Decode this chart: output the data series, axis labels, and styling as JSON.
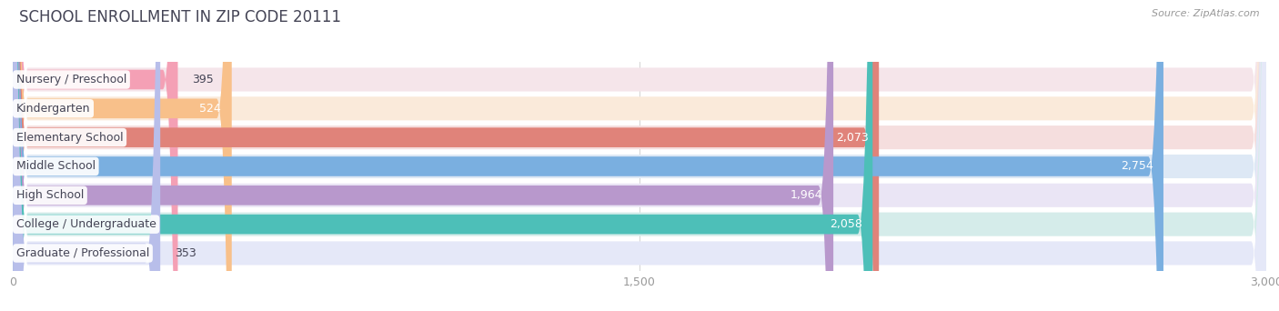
{
  "title": "SCHOOL ENROLLMENT IN ZIP CODE 20111",
  "source": "Source: ZipAtlas.com",
  "categories": [
    "Nursery / Preschool",
    "Kindergarten",
    "Elementary School",
    "Middle School",
    "High School",
    "College / Undergraduate",
    "Graduate / Professional"
  ],
  "values": [
    395,
    524,
    2073,
    2754,
    1964,
    2058,
    353
  ],
  "bar_colors": [
    "#f4a0b5",
    "#f8c08a",
    "#e0837a",
    "#7aafe0",
    "#b898cc",
    "#4dbfb8",
    "#b8beea"
  ],
  "bar_bg_colors": [
    "#f5e5ea",
    "#faeada",
    "#f5dede",
    "#dde8f5",
    "#eae5f5",
    "#d5ecea",
    "#e5e8f8"
  ],
  "xlim": [
    0,
    3000
  ],
  "xticks": [
    0,
    1500,
    3000
  ],
  "title_fontsize": 12,
  "label_fontsize": 9,
  "value_fontsize": 9,
  "title_color": "#444455",
  "source_color": "#999999",
  "label_color": "#444455",
  "value_white_threshold": 500,
  "background_color": "#ffffff"
}
